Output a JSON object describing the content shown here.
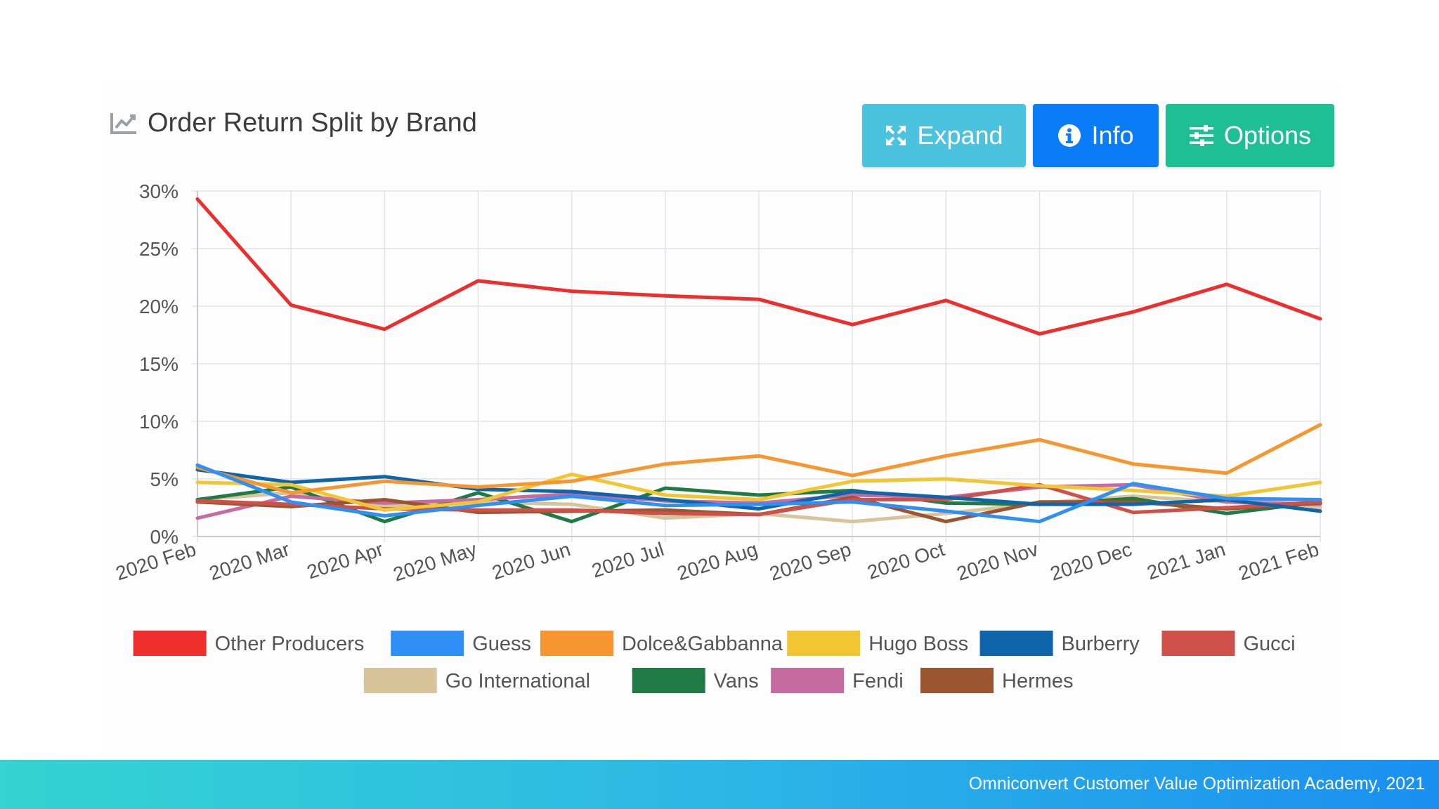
{
  "header": {
    "title": "Order Return Split by Brand",
    "title_icon": "line-chart-icon"
  },
  "toolbar": {
    "expand_label": "Expand",
    "info_label": "Info",
    "options_label": "Options",
    "colors": {
      "expand": "#4cc3de",
      "info": "#0a7cf7",
      "options": "#1fbf95"
    }
  },
  "footer": {
    "text": "Omniconvert Customer Value Optimization Academy, 2021"
  },
  "chart_data": {
    "type": "line",
    "title": "",
    "xlabel": "",
    "ylabel": "",
    "ylim": [
      0,
      30
    ],
    "ytick_step": 5,
    "y_format": "percent",
    "grid": true,
    "legend_position": "bottom",
    "categories": [
      "2020 Feb",
      "2020 Mar",
      "2020 Apr",
      "2020 May",
      "2020 Jun",
      "2020 Jul",
      "2020 Aug",
      "2020 Sep",
      "2020 Oct",
      "2020 Nov",
      "2020 Dec",
      "2021 Jan",
      "2021 Feb"
    ],
    "series": [
      {
        "name": "Go International",
        "color": "#d8c49a",
        "values": [
          3.2,
          3.8,
          2.6,
          3.0,
          2.8,
          1.6,
          2.0,
          1.3,
          2.0,
          2.9,
          3.5,
          3.0,
          2.5
        ]
      },
      {
        "name": "Vans",
        "color": "#1f7a45",
        "values": [
          3.2,
          4.3,
          1.3,
          3.8,
          1.3,
          4.2,
          3.6,
          4.0,
          2.9,
          2.8,
          3.3,
          2.0,
          3.0
        ]
      },
      {
        "name": "Fendi",
        "color": "#c66ba0",
        "values": [
          1.6,
          3.5,
          2.9,
          3.2,
          3.7,
          3.1,
          2.9,
          3.6,
          3.4,
          4.3,
          4.5,
          3.0,
          2.8
        ]
      },
      {
        "name": "Hermes",
        "color": "#9b5530",
        "values": [
          3.0,
          2.6,
          3.2,
          2.1,
          2.2,
          2.3,
          1.9,
          3.4,
          1.3,
          3.0,
          3.0,
          2.4,
          2.9
        ]
      },
      {
        "name": "Gucci",
        "color": "#cf5048",
        "values": [
          3.1,
          2.8,
          2.4,
          2.3,
          2.3,
          2.0,
          1.9,
          3.2,
          3.2,
          4.5,
          2.1,
          2.5,
          3.0
        ]
      },
      {
        "name": "Burberry",
        "color": "#0f65aa",
        "values": [
          5.8,
          4.7,
          5.2,
          4.1,
          3.9,
          3.2,
          2.4,
          3.9,
          3.4,
          2.8,
          2.8,
          3.2,
          2.2
        ]
      },
      {
        "name": "Hugo Boss",
        "color": "#f2c532",
        "values": [
          4.7,
          4.5,
          2.3,
          3.0,
          5.4,
          3.6,
          3.2,
          4.8,
          5.0,
          4.4,
          4.0,
          3.5,
          4.7
        ]
      },
      {
        "name": "Dolce&Gabbanna",
        "color": "#f7952e",
        "values": [
          6.0,
          3.8,
          4.8,
          4.3,
          4.8,
          6.3,
          7.0,
          5.3,
          7.0,
          8.4,
          6.3,
          5.5,
          9.7
        ]
      },
      {
        "name": "Guess",
        "color": "#2f8ff5",
        "values": [
          6.2,
          3.0,
          1.8,
          2.7,
          3.5,
          2.7,
          2.8,
          3.0,
          2.2,
          1.3,
          4.6,
          3.3,
          3.2
        ]
      },
      {
        "name": "Other Producers",
        "color": "#ee2d2d",
        "values": [
          29.3,
          20.1,
          18.0,
          22.2,
          21.3,
          20.9,
          20.6,
          18.4,
          20.5,
          17.6,
          19.5,
          21.9,
          18.9
        ]
      }
    ],
    "legend_order": [
      "Other Producers",
      "Guess",
      "Dolce&Gabbanna",
      "Hugo Boss",
      "Burberry",
      "Gucci",
      "Go International",
      "Vans",
      "Fendi",
      "Hermes"
    ]
  }
}
